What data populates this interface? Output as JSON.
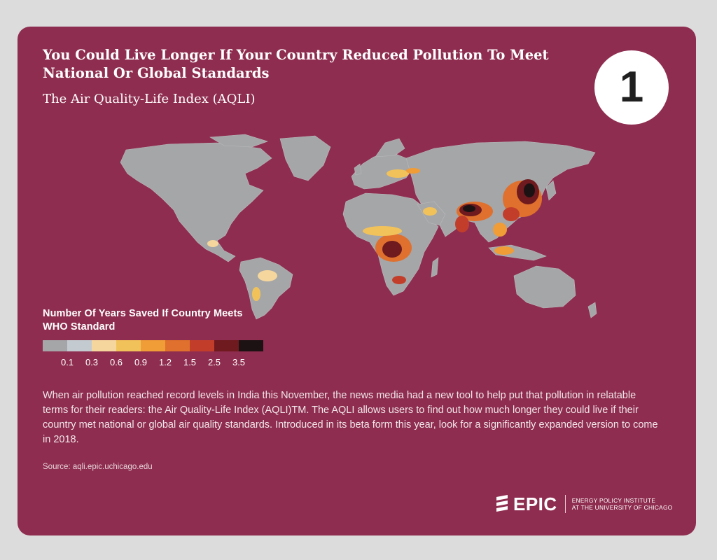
{
  "header": {
    "title": "You Could Live Longer If Your Country Reduced Pollution To Meet National Or Global Standards",
    "subtitle": "The Air Quality-Life Index (AQLI)",
    "badge_number": "1"
  },
  "legend": {
    "title": "Number Of Years Saved If Country Meets WHO Standard",
    "swatch_colors": [
      "#a5a6a8",
      "#c4cbd0",
      "#f5d79e",
      "#f2c25a",
      "#f09c37",
      "#e0702d",
      "#c23e2b",
      "#6e1a1e",
      "#1c1214"
    ],
    "tick_labels": [
      "0.1",
      "0.3",
      "0.6",
      "0.9",
      "1.2",
      "1.5",
      "2.5",
      "3.5"
    ]
  },
  "body": {
    "text": "When air pollution reached record levels in India this November, the news media had a new tool to help put that pollution in relatable terms for their readers: the Air Quality-Life Index (AQLI)TM.  The AQLI allows users to find out how much longer they could live if their country met national or global air quality standards. Introduced in its beta form this year, look for a significantly expanded version to come in 2018.",
    "source": "Source: aqli.epic.uchicago.edu"
  },
  "footer": {
    "logo_word": "EPIC",
    "logo_line1": "ENERGY POLICY INSTITUTE",
    "logo_line2": "AT THE UNIVERSITY OF CHICAGO"
  },
  "colors": {
    "background": "#8e2d4f",
    "land": "#a5a6a8",
    "hotspot_high": "#1c1214",
    "hotspot_mid": "#e0702d",
    "hotspot_low": "#f2c25a"
  }
}
